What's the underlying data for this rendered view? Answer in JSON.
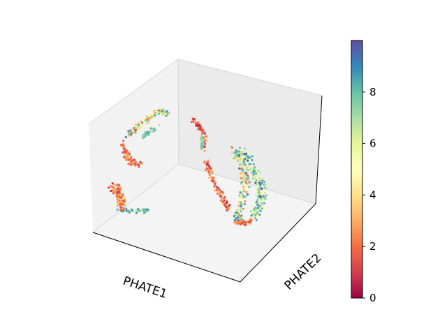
{
  "chart_data": {
    "type": "scatter",
    "projection": "3d",
    "xlabel": "PHATE1",
    "ylabel": "PHATE2",
    "zlabel": "",
    "colormap": "Spectral",
    "colorbar": {
      "ticks": [
        "0",
        "2",
        "4",
        "6",
        "8"
      ],
      "range": [
        0,
        10
      ]
    },
    "grid": false,
    "legend": "none",
    "colors": {
      "pane_bottom": "#f2f2f2",
      "pane_side": "#ececec",
      "pane_back": "#ebebeb",
      "edge": "#000000"
    }
  }
}
